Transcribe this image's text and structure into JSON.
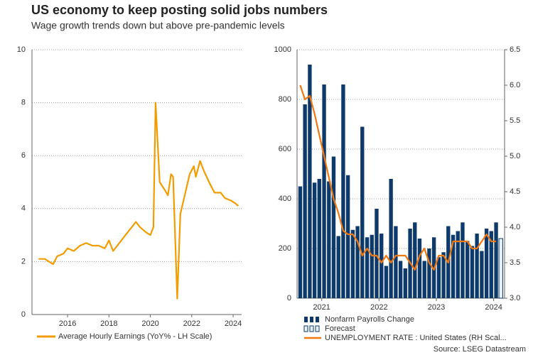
{
  "title": "US economy to keep posting solid jobs numbers",
  "subtitle": "Wage growth trends down but above pre-pandemic levels",
  "source": "Source: LSEG Datastream",
  "chart_data": [
    {
      "type": "line",
      "x": [
        2014.6,
        2014.9,
        2015.1,
        2015.3,
        2015.5,
        2015.8,
        2016.0,
        2016.3,
        2016.6,
        2016.9,
        2017.2,
        2017.5,
        2017.8,
        2018.0,
        2018.2,
        2018.5,
        2018.8,
        2019.1,
        2019.3,
        2019.5,
        2019.8,
        2020.0,
        2020.15,
        2020.25,
        2020.35,
        2020.45,
        2020.7,
        2020.85,
        2021.0,
        2021.1,
        2021.3,
        2021.45,
        2021.6,
        2021.9,
        2022.1,
        2022.2,
        2022.4,
        2022.6,
        2022.9,
        2023.1,
        2023.4,
        2023.6,
        2023.9,
        2024.1,
        2024.25
      ],
      "series": [
        {
          "name": "Average Hourly Earnings (YoY% - LH Scale)",
          "color": "#f29c00",
          "values": [
            2.1,
            2.1,
            2.0,
            1.9,
            2.2,
            2.3,
            2.5,
            2.4,
            2.6,
            2.7,
            2.6,
            2.6,
            2.5,
            2.8,
            2.4,
            2.7,
            3.0,
            3.3,
            3.5,
            3.3,
            3.1,
            3.0,
            3.3,
            8.0,
            6.5,
            5.0,
            4.7,
            4.5,
            5.3,
            5.2,
            0.6,
            3.8,
            4.3,
            5.3,
            5.6,
            5.2,
            5.8,
            5.4,
            4.9,
            4.6,
            4.6,
            4.4,
            4.3,
            4.2,
            4.1
          ]
        }
      ],
      "xlim": [
        2014.28,
        2024.41
      ],
      "xticks": [
        2016,
        2018,
        2020,
        2022,
        2024
      ],
      "ylim": [
        0,
        10
      ],
      "yticks": [
        0,
        2,
        4,
        6,
        8,
        10
      ],
      "grid": true
    },
    {
      "type": "bar_line",
      "x": [
        2020.625,
        2020.708,
        2020.792,
        2020.875,
        2020.958,
        2021.042,
        2021.125,
        2021.208,
        2021.292,
        2021.375,
        2021.458,
        2021.542,
        2021.625,
        2021.708,
        2021.792,
        2021.875,
        2021.958,
        2022.042,
        2022.125,
        2022.208,
        2022.292,
        2022.375,
        2022.458,
        2022.542,
        2022.625,
        2022.708,
        2022.792,
        2022.875,
        2022.958,
        2023.042,
        2023.125,
        2023.208,
        2023.292,
        2023.375,
        2023.458,
        2023.542,
        2023.625,
        2023.708,
        2023.792,
        2023.875,
        2023.958,
        2024.042,
        2024.125
      ],
      "series": [
        {
          "name": "Nonfarm Payrolls Change",
          "color": "#0d3a6b",
          "values": [
            450,
            780,
            940,
            465,
            480,
            860,
            470,
            570,
            250,
            860,
            495,
            275,
            290,
            690,
            245,
            255,
            360,
            260,
            130,
            480,
            290,
            150,
            120,
            280,
            305,
            240,
            150,
            200,
            245,
            165,
            185,
            290,
            255,
            270,
            305,
            230,
            210,
            260,
            190,
            280,
            270,
            305,
            null
          ]
        },
        {
          "name": "Forecast",
          "color": "#0d3a6b",
          "values": [
            null,
            null,
            null,
            null,
            null,
            null,
            null,
            null,
            null,
            null,
            null,
            null,
            null,
            null,
            null,
            null,
            null,
            null,
            null,
            null,
            null,
            null,
            null,
            null,
            null,
            null,
            null,
            null,
            null,
            null,
            null,
            null,
            null,
            null,
            null,
            null,
            null,
            null,
            null,
            null,
            null,
            null,
            240
          ]
        },
        {
          "name": "UNEMPLOYMENT RATE : United States (RH Scal...",
          "color": "#f07810",
          "axis": "y2",
          "values": [
            6.0,
            5.8,
            5.85,
            5.6,
            5.3,
            5.0,
            4.7,
            4.4,
            4.2,
            3.95,
            3.9,
            3.9,
            3.8,
            3.6,
            3.7,
            3.6,
            3.6,
            3.5,
            3.6,
            3.5,
            3.6,
            3.6,
            3.6,
            3.5,
            3.4,
            3.6,
            3.7,
            3.5,
            3.4,
            3.6,
            3.6,
            3.5,
            3.8,
            3.8,
            3.8,
            3.8,
            3.7,
            3.7,
            3.8,
            3.9,
            3.8,
            3.8,
            null
          ]
        }
      ],
      "xlim": [
        2020.57,
        2024.19
      ],
      "xticks": [
        2021,
        2022,
        2023,
        2024
      ],
      "ylim": [
        0,
        1000
      ],
      "yticks": [
        0,
        200,
        400,
        600,
        800,
        1000
      ],
      "y2lim": [
        3,
        6.5
      ],
      "y2ticks": [
        {
          "value": 3,
          "label": "3.0"
        },
        3.5,
        {
          "value": 4,
          "label": "4.0"
        },
        4.5,
        {
          "value": 5,
          "label": "5.0"
        },
        5.5,
        {
          "value": 6,
          "label": "6.0"
        },
        6.5
      ],
      "grid": true
    }
  ]
}
